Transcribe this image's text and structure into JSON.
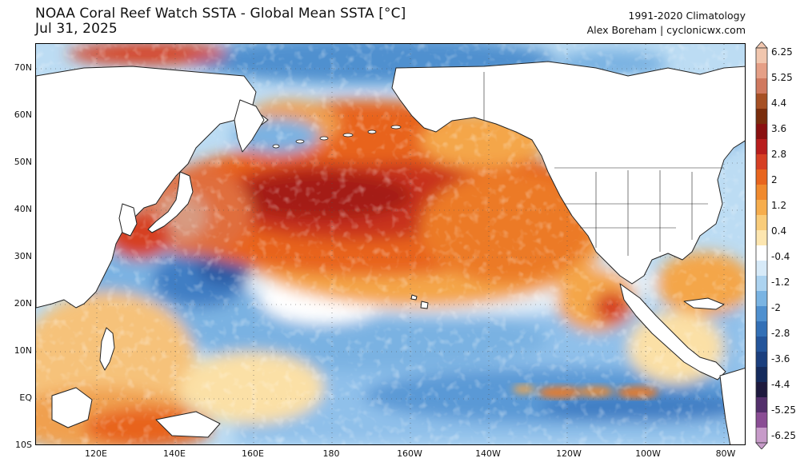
{
  "header": {
    "title_line1": "NOAA Coral Reef Watch SSTA - Global Mean SSTA [°C]",
    "title_line2": "Jul 31, 2025",
    "right_line1": "1991-2020 Climatology",
    "right_line2": "Alex Boreham | cyclonicwx.com"
  },
  "map": {
    "region": "North Pacific",
    "lat_labels": [
      "70N",
      "60N",
      "50N",
      "40N",
      "30N",
      "20N",
      "10N",
      "EQ",
      "10S"
    ],
    "lon_labels": [
      "120E",
      "140E",
      "160E",
      "180",
      "160W",
      "140W",
      "120W",
      "100W",
      "80W"
    ],
    "colors": {
      "land": "#ffffff",
      "coast": "#222222",
      "warm_strong": "#b8181a",
      "warm": "#e8641e",
      "warm_light": "#f4a64a",
      "neutral_warm": "#fbe0a6",
      "neutral": "#ffffff",
      "cool_light": "#a6cfee",
      "cool": "#5a99d6",
      "cool_strong": "#2b5aa3"
    }
  },
  "colorbar": {
    "ticks": [
      "6.25",
      "5.25",
      "4.4",
      "3.6",
      "2.8",
      "2",
      "1.2",
      "0.4",
      "-0.4",
      "-1.2",
      "-2",
      "-2.8",
      "-3.6",
      "-4.4",
      "-5.25",
      "-6.25"
    ],
    "colors": [
      "#f1c6ae",
      "#e59f86",
      "#d0795f",
      "#a65024",
      "#7a2d0c",
      "#8a1010",
      "#b81d1d",
      "#d63f24",
      "#e8651e",
      "#f08a2e",
      "#f6ad4d",
      "#f9cc7a",
      "#fde6b0",
      "#ffffff",
      "#d7eaf8",
      "#acd3f0",
      "#7ab4e3",
      "#4f90cf",
      "#3370b6",
      "#24559b",
      "#1b3f7e",
      "#152b5d",
      "#1e1a3e",
      "#532f6b",
      "#8a4d94",
      "#c79bc9"
    ]
  }
}
